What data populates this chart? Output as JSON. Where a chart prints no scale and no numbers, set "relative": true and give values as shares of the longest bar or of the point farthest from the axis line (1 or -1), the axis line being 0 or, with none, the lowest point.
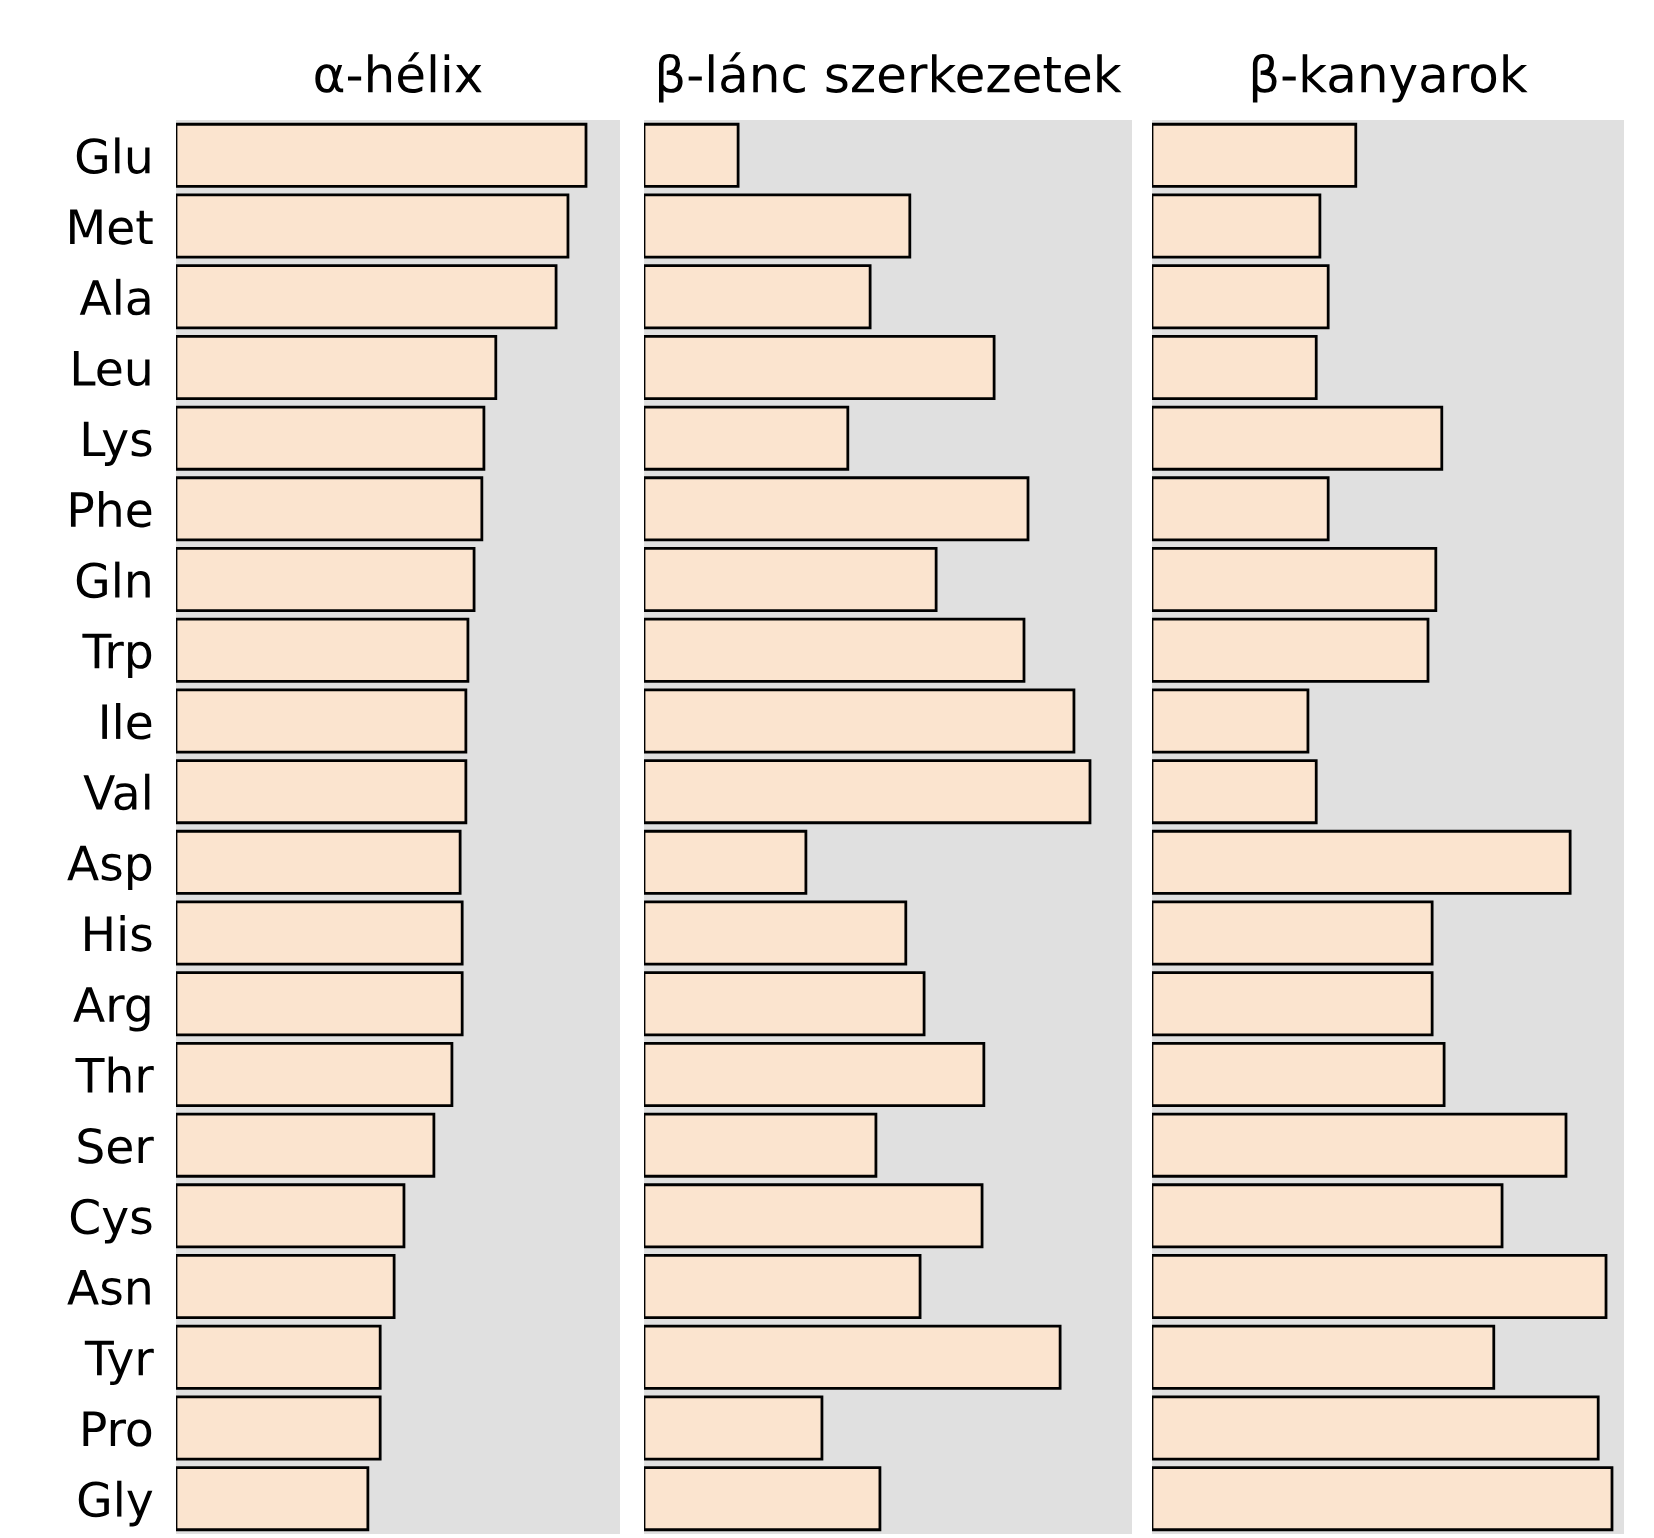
{
  "chart_data": [
    {
      "type": "bar",
      "orientation": "horizontal",
      "relative": true,
      "title": "α-hélix",
      "tick_labels": "y",
      "color": "#fbe4cf",
      "categories": [
        "Glu",
        "Met",
        "Ala",
        "Leu",
        "Lys",
        "Phe",
        "Gln",
        "Trp",
        "Ile",
        "Val",
        "Asp",
        "His",
        "Arg",
        "Thr",
        "Ser",
        "Cys",
        "Asn",
        "Tyr",
        "Pro",
        "Gly"
      ],
      "values": [
        1,
        0.956,
        0.927,
        0.78,
        0.751,
        0.746,
        0.727,
        0.712,
        0.707,
        0.707,
        0.693,
        0.698,
        0.698,
        0.673,
        0.629,
        0.556,
        0.532,
        0.498,
        0.498,
        0.468
      ]
    },
    {
      "type": "bar",
      "orientation": "horizontal",
      "relative": true,
      "title": "β-lánc szerkezetek",
      "tick_labels": false,
      "color": "#fbe4cf",
      "categories": [
        null,
        null,
        null,
        null,
        null,
        null,
        null,
        null,
        null,
        null,
        null,
        null,
        null,
        null,
        null,
        null,
        null,
        null,
        null,
        null
      ],
      "values": [
        0.211,
        0.596,
        0.507,
        0.785,
        0.457,
        0.861,
        0.655,
        0.852,
        0.964,
        1,
        0.363,
        0.587,
        0.628,
        0.762,
        0.52,
        0.758,
        0.619,
        0.933,
        0.399,
        0.529
      ]
    },
    {
      "type": "bar",
      "orientation": "horizontal",
      "relative": true,
      "title": "β-kanyarok",
      "tick_labels": false,
      "color": "#fbe4cf",
      "categories": [
        null,
        null,
        null,
        null,
        null,
        null,
        null,
        null,
        null,
        null,
        null,
        null,
        null,
        null,
        null,
        null,
        null,
        null,
        null,
        null
      ],
      "values": [
        0.443,
        0.365,
        0.383,
        0.357,
        0.63,
        0.383,
        0.617,
        0.6,
        0.339,
        0.357,
        0.909,
        0.609,
        0.609,
        0.635,
        0.9,
        0.761,
        0.987,
        0.743,
        0.97,
        1
      ]
    }
  ]
}
